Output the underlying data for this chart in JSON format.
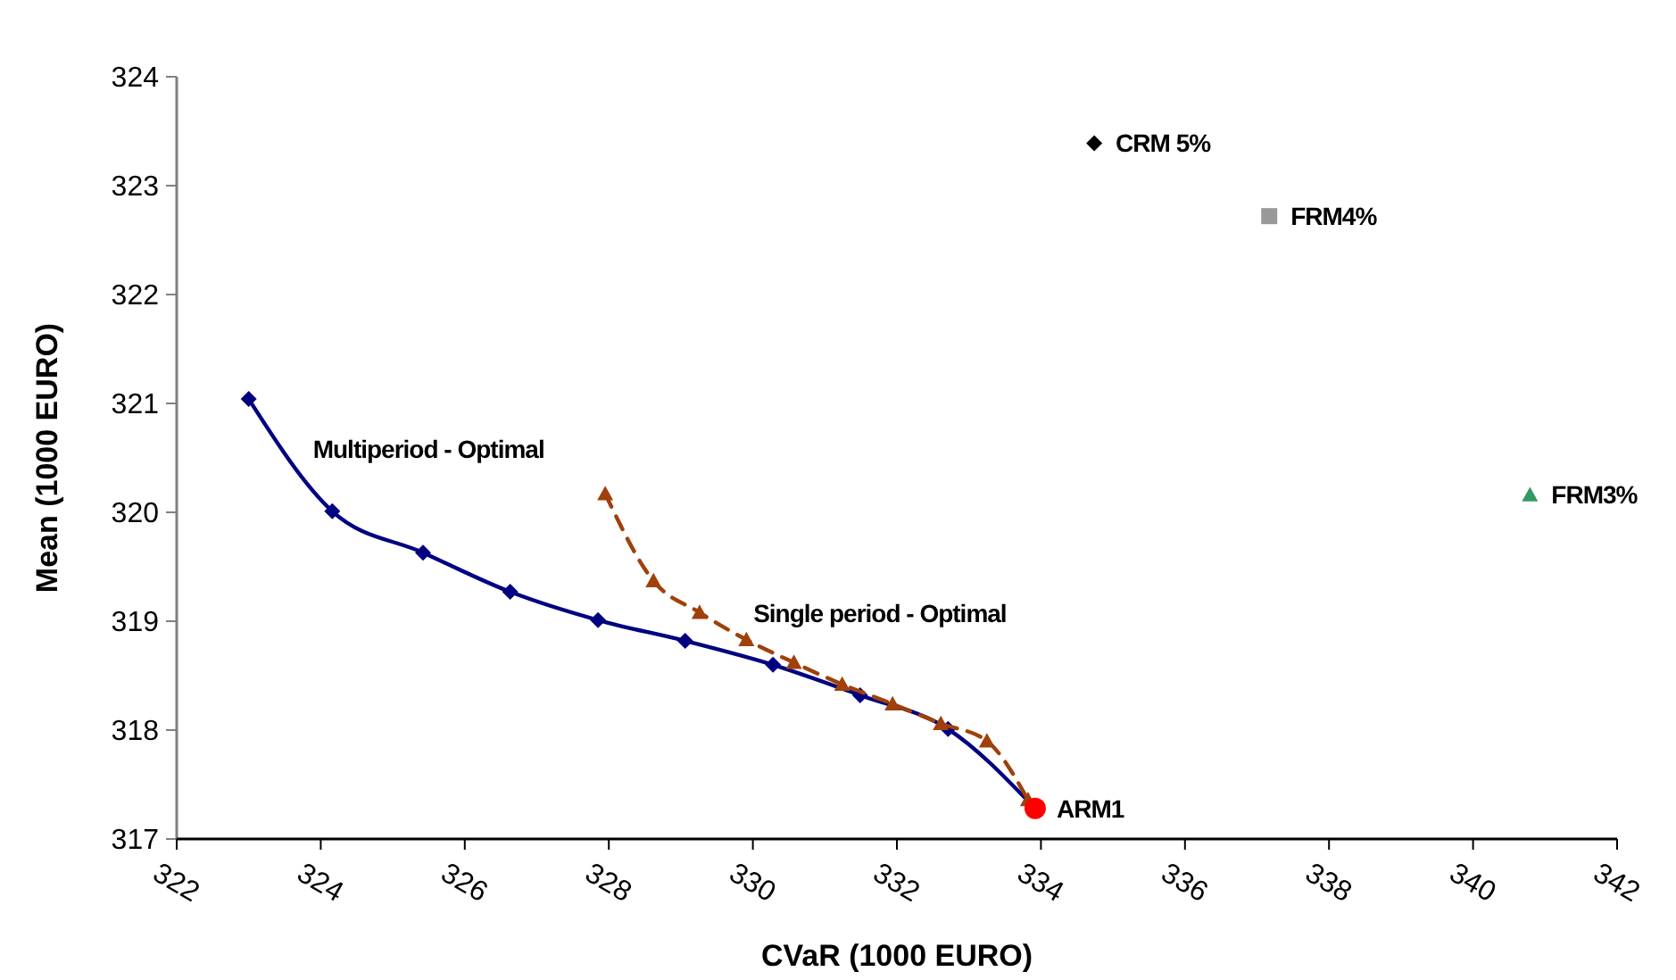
{
  "chart_data": {
    "type": "line",
    "xlabel": "CVaR (1000 EURO)",
    "ylabel": "Mean (1000 EURO)",
    "xlim": [
      322,
      342
    ],
    "xticks": [
      322,
      324,
      326,
      328,
      330,
      332,
      334,
      336,
      338,
      340,
      342
    ],
    "ylim": [
      317,
      324
    ],
    "yticks": [
      317,
      318,
      319,
      320,
      321,
      322,
      323,
      324
    ],
    "grid": false,
    "series": [
      {
        "name": "Multiperiod - Optimal",
        "color": "#000080",
        "marker": "diamond",
        "line_style": "solid",
        "x": [
          323.0,
          324.16,
          325.42,
          326.63,
          327.85,
          329.06,
          330.28,
          331.49,
          332.71,
          333.92
        ],
        "values": [
          321.04,
          320.01,
          319.63,
          319.27,
          319.01,
          318.82,
          318.6,
          318.32,
          318.01,
          317.28
        ]
      },
      {
        "name": "Single period - Optimal",
        "color": "#a0400a",
        "marker": "triangle",
        "line_style": "dashed",
        "x": [
          327.95,
          328.62,
          329.26,
          329.91,
          330.57,
          331.24,
          331.94,
          332.61,
          333.25,
          333.82
        ],
        "values": [
          320.17,
          319.37,
          319.08,
          318.83,
          318.62,
          318.42,
          318.24,
          318.06,
          317.9,
          317.36
        ]
      },
      {
        "name": "ARM1",
        "type": "scatter",
        "color": "#ff0000",
        "marker": "circle",
        "x": [
          333.92
        ],
        "values": [
          317.28
        ]
      },
      {
        "name": "CRM 5%",
        "type": "scatter",
        "color": "#000000",
        "marker": "diamond",
        "x": [
          334.74
        ],
        "values": [
          323.39
        ]
      },
      {
        "name": "FRM4%",
        "type": "scatter",
        "color": "#999999",
        "marker": "square",
        "x": [
          337.17
        ],
        "values": [
          322.72
        ]
      },
      {
        "name": "FRM3%",
        "type": "scatter",
        "color": "#339966",
        "marker": "triangle",
        "x": [
          340.79
        ],
        "values": [
          320.16
        ]
      }
    ]
  }
}
